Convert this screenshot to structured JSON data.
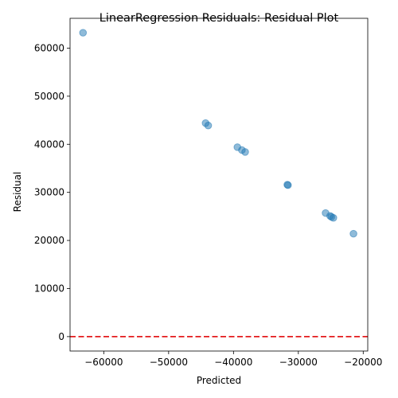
{
  "chart_data": {
    "type": "scatter",
    "title": "LinearRegression Residuals: Residual Plot",
    "xlabel": "Predicted",
    "ylabel": "Residual",
    "xlim": [
      -65200,
      -19300
    ],
    "ylim": [
      -3000,
      66200
    ],
    "xticks": [
      -60000,
      -50000,
      -40000,
      -30000,
      -20000
    ],
    "xtick_labels": [
      "−60000",
      "−50000",
      "−40000",
      "−30000",
      "−20000"
    ],
    "yticks": [
      0,
      10000,
      20000,
      30000,
      40000,
      50000,
      60000
    ],
    "ytick_labels": [
      "0",
      "10000",
      "20000",
      "30000",
      "40000",
      "50000",
      "60000"
    ],
    "points": [
      {
        "x": -63200,
        "y": 63200
      },
      {
        "x": -44300,
        "y": 44400
      },
      {
        "x": -43900,
        "y": 43900
      },
      {
        "x": -39400,
        "y": 39400
      },
      {
        "x": -38700,
        "y": 38800
      },
      {
        "x": -38200,
        "y": 38400
      },
      {
        "x": -31700,
        "y": 31600
      },
      {
        "x": -31600,
        "y": 31500
      },
      {
        "x": -25800,
        "y": 25700
      },
      {
        "x": -25100,
        "y": 25100
      },
      {
        "x": -24900,
        "y": 24900
      },
      {
        "x": -24600,
        "y": 24700
      },
      {
        "x": -21500,
        "y": 21400
      }
    ],
    "reference_line": {
      "y": 0,
      "style": "dashed",
      "color": "#e41a1c"
    },
    "point_color": "#1f77b4",
    "point_alpha": 0.5,
    "grid": false,
    "legend": "none"
  }
}
